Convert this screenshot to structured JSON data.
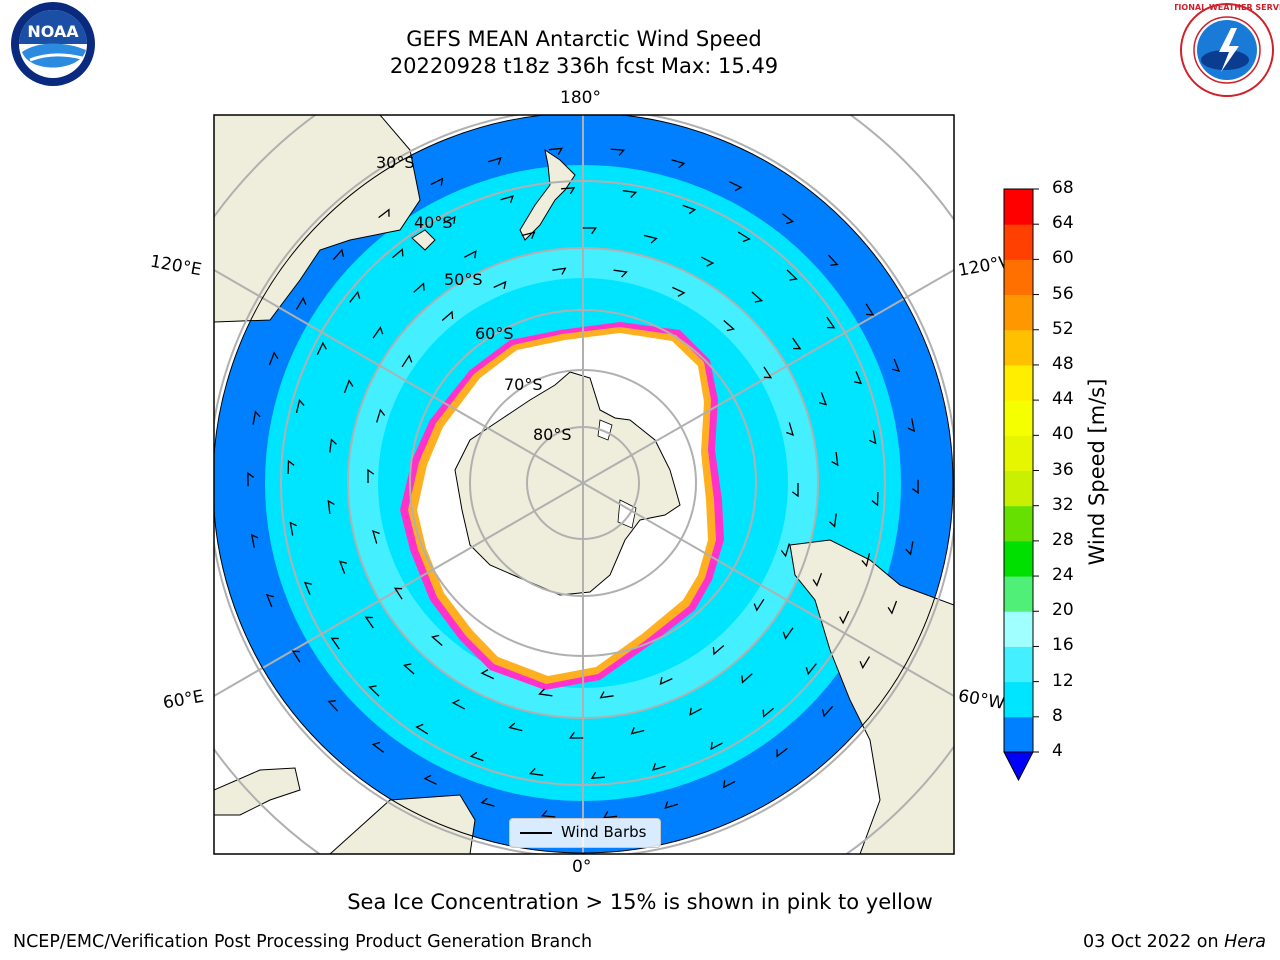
{
  "title": {
    "line1": "GEFS MEAN Antarctic Wind Speed",
    "line2": "20220928 t18z 336h fcst   Max: 15.49"
  },
  "map": {
    "projection": "south-polar-stereographic",
    "lon_labels": {
      "top": "180°",
      "bottom": "0°",
      "left_upper": "120°E",
      "left_lower": "60°E",
      "right_upper": "120°W",
      "right_lower": "60°W"
    },
    "lat_labels": [
      "30°S",
      "40°S",
      "50°S",
      "60°S",
      "70°S",
      "80°S"
    ],
    "land_color": "#efeedc",
    "colors": {
      "band_4_8": "#0080ff",
      "band_8_12": "#00e5ff",
      "band_12_16": "#44f0ff",
      "ice_edge": "#ff33cc",
      "ice_edge_inner": "#ffb020",
      "ice_fill": "#ffffff"
    },
    "legend": {
      "label": "Wind Barbs"
    }
  },
  "colorbar": {
    "label": "Wind Speed [m/s]",
    "ticks": [
      "4",
      "8",
      "12",
      "16",
      "20",
      "24",
      "28",
      "32",
      "36",
      "40",
      "44",
      "48",
      "52",
      "56",
      "60",
      "64",
      "68"
    ],
    "colors": [
      "#0080ff",
      "#00e5ff",
      "#44f0ff",
      "#a0ffff",
      "#50f078",
      "#00e000",
      "#66e000",
      "#c8f000",
      "#e6f500",
      "#f5ff00",
      "#ffee00",
      "#ffc000",
      "#ff9800",
      "#ff7000",
      "#ff4000",
      "#ff0000"
    ],
    "extend_color": "#0000ff"
  },
  "note": "Sea Ice Concentration > 15% is shown in pink to yellow",
  "footer": {
    "left": "NCEP/EMC/Verification Post Processing Product Generation Branch",
    "right_prefix": "03 Oct 2022 on ",
    "right_host": "Hera"
  },
  "logos": {
    "noaa": "NOAA",
    "nws": "NATIONAL WEATHER SERVICE"
  }
}
